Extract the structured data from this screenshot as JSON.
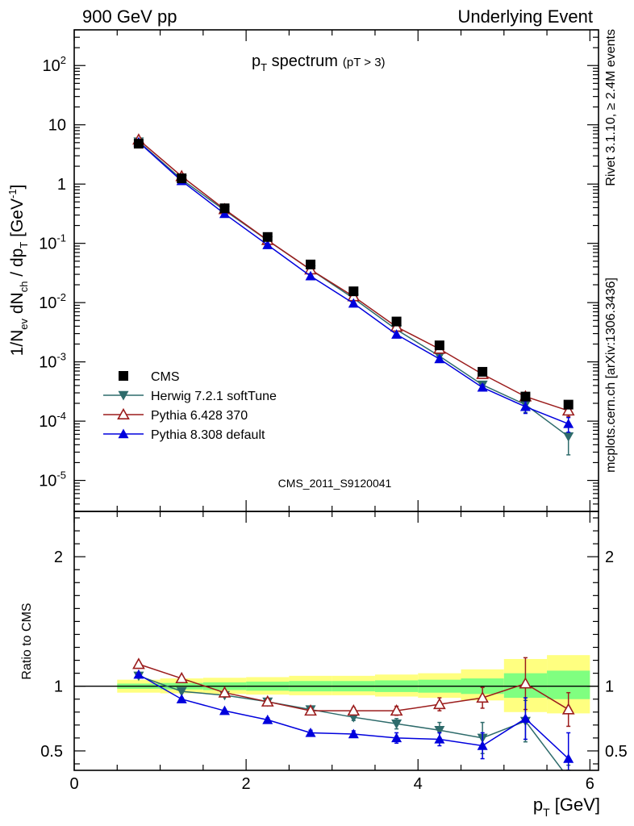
{
  "header": {
    "left": "900 GeV pp",
    "right": "Underlying Event"
  },
  "side_labels": {
    "rivet": "Rivet 3.1.10, ≥ 2.4M events",
    "mcplots": "mcplots.cern.ch [arXiv:1306.3436]"
  },
  "plot_title": {
    "main": "p",
    "sub": "T",
    "rest": " spectrum",
    "cut": "(pT >  3)"
  },
  "analysis_label": "CMS_2011_S9120041",
  "chart_data": [
    {
      "type": "scatter",
      "panel": "main",
      "ylabel": "1/N_ev dN_ch / dp_T [GeV^-1]",
      "yscale": "log",
      "ylim": [
        3e-06,
        400
      ],
      "xlim": [
        0,
        6.1
      ],
      "y_ticklabels": [
        "10^-5",
        "10^-4",
        "10^-3",
        "10^-2",
        "10^-1",
        "1",
        "10",
        "10^2"
      ],
      "legend_position": "lower-left",
      "x": [
        0.75,
        1.25,
        1.75,
        2.25,
        2.75,
        3.25,
        3.75,
        4.25,
        4.75,
        5.25,
        5.75
      ],
      "series": [
        {
          "name": "CMS",
          "color": "#000000",
          "marker": "square",
          "values": [
            4.8,
            1.25,
            0.39,
            0.128,
            0.044,
            0.0155,
            0.0048,
            0.0019,
            0.00068,
            0.00026,
            0.00019
          ]
        },
        {
          "name": "Herwig 7.2.1 softTune",
          "color": "#2e6b6b",
          "marker": "triangle-down",
          "values": [
            5.2,
            1.2,
            0.36,
            0.112,
            0.036,
            0.0118,
            0.0035,
            0.00125,
            0.00041,
            0.00019,
            5.5e-05
          ],
          "errors": [
            0,
            0,
            0,
            0,
            0,
            0,
            0.0002,
            0.0001,
            4e-05,
            5e-05,
            2.8e-05
          ]
        },
        {
          "name": "Pythia 6.428 370",
          "color": "#9b1c1c",
          "marker": "triangle-up-open",
          "values": [
            5.6,
            1.35,
            0.375,
            0.113,
            0.036,
            0.0127,
            0.0039,
            0.00165,
            0.00062,
            0.00026,
            0.00015
          ],
          "errors": [
            0,
            0,
            0,
            0,
            0,
            0,
            0.0002,
            0.0001,
            5e-05,
            3e-05,
            3e-05
          ]
        },
        {
          "name": "Pythia 8.308 default",
          "color": "#0000dd",
          "marker": "triangle-up",
          "values": [
            5.1,
            1.13,
            0.315,
            0.094,
            0.028,
            0.0097,
            0.0029,
            0.00112,
            0.00037,
            0.000175,
            9e-05
          ],
          "errors": [
            0,
            0,
            0,
            0,
            0,
            0,
            0.00015,
            8e-05,
            4e-05,
            4e-05,
            2.5e-05
          ]
        }
      ]
    },
    {
      "type": "scatter",
      "panel": "ratio",
      "ylabel": "Ratio to CMS",
      "xlabel": "p_T [GeV]",
      "ylim": [
        0.35,
        2.35
      ],
      "xlim": [
        0,
        6.1
      ],
      "x_ticklabels": [
        "0",
        "2",
        "4",
        "6"
      ],
      "y_ticklabels": [
        "0.5",
        "1",
        "2"
      ],
      "reference_line": 1,
      "bins": [
        [
          0.5,
          1.0
        ],
        [
          1.0,
          1.5
        ],
        [
          1.5,
          2.0
        ],
        [
          2.0,
          2.5
        ],
        [
          2.5,
          3.0
        ],
        [
          3.0,
          3.5
        ],
        [
          3.5,
          4.0
        ],
        [
          4.0,
          4.5
        ],
        [
          4.5,
          5.0
        ],
        [
          5.0,
          5.5
        ],
        [
          5.5,
          6.0
        ]
      ],
      "band_inner": [
        [
          0.98,
          1.02
        ],
        [
          0.975,
          1.025
        ],
        [
          0.97,
          1.03
        ],
        [
          0.965,
          1.035
        ],
        [
          0.96,
          1.04
        ],
        [
          0.96,
          1.04
        ],
        [
          0.955,
          1.045
        ],
        [
          0.95,
          1.05
        ],
        [
          0.94,
          1.06
        ],
        [
          0.91,
          1.1
        ],
        [
          0.9,
          1.12
        ]
      ],
      "band_outer": [
        [
          0.95,
          1.05
        ],
        [
          0.945,
          1.06
        ],
        [
          0.94,
          1.065
        ],
        [
          0.935,
          1.07
        ],
        [
          0.93,
          1.08
        ],
        [
          0.93,
          1.08
        ],
        [
          0.92,
          1.09
        ],
        [
          0.91,
          1.1
        ],
        [
          0.89,
          1.13
        ],
        [
          0.8,
          1.21
        ],
        [
          0.79,
          1.24
        ]
      ],
      "x": [
        0.75,
        1.25,
        1.75,
        2.25,
        2.75,
        3.25,
        3.75,
        4.25,
        4.75,
        5.25,
        5.75
      ],
      "series": [
        {
          "name": "Herwig 7.2.1 softTune",
          "color": "#2e6b6b",
          "marker": "triangle-down",
          "values": [
            1.08,
            0.96,
            0.93,
            0.88,
            0.82,
            0.76,
            0.71,
            0.66,
            0.6,
            0.73,
            0.29
          ],
          "errors": [
            0.01,
            0.01,
            0.01,
            0.015,
            0.02,
            0.025,
            0.04,
            0.06,
            0.12,
            0.16,
            0.1
          ]
        },
        {
          "name": "Pythia 6.428 370",
          "color": "#9b1c1c",
          "marker": "triangle-up-open",
          "values": [
            1.17,
            1.06,
            0.95,
            0.88,
            0.81,
            0.81,
            0.81,
            0.86,
            0.91,
            1.02,
            0.82
          ],
          "errors": [
            0.01,
            0.01,
            0.01,
            0.015,
            0.02,
            0.025,
            0.035,
            0.05,
            0.08,
            0.2,
            0.13
          ]
        },
        {
          "name": "Pythia 8.308 default",
          "color": "#0000dd",
          "marker": "triangle-up",
          "values": [
            1.09,
            0.9,
            0.81,
            0.74,
            0.64,
            0.63,
            0.6,
            0.59,
            0.54,
            0.75,
            0.44
          ],
          "errors": [
            0.01,
            0.01,
            0.01,
            0.015,
            0.02,
            0.025,
            0.04,
            0.05,
            0.1,
            0.16,
            0.2
          ]
        }
      ]
    }
  ],
  "colors": {
    "band_inner": "#80ff80",
    "band_outer": "#ffff80"
  }
}
